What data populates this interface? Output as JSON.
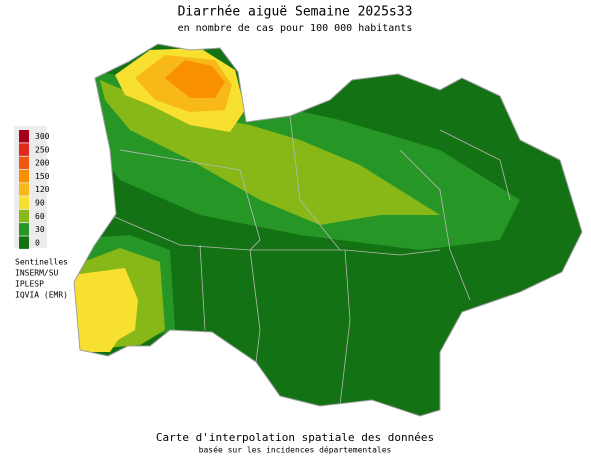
{
  "header": {
    "title": "Diarrhée aiguë Semaine 2025s33",
    "subtitle": "en nombre de cas pour 100 000 habitants"
  },
  "legend": {
    "items": [
      {
        "label": "300",
        "color": "#a8001c"
      },
      {
        "label": "250",
        "color": "#e02a1c"
      },
      {
        "label": "200",
        "color": "#f05a10"
      },
      {
        "label": "150",
        "color": "#f89000"
      },
      {
        "label": "120",
        "color": "#f8b818"
      },
      {
        "label": "90",
        "color": "#f8e030"
      },
      {
        "label": "60",
        "color": "#88b818"
      },
      {
        "label": "30",
        "color": "#269626"
      },
      {
        "label": "0",
        "color": "#137213"
      }
    ]
  },
  "sources": {
    "lines": [
      "Sentinelles",
      "INSERM/SU",
      "IPLESP",
      "IQVIA (EMR)"
    ]
  },
  "footer": {
    "line1": "Carte d'interpolation spatiale des données",
    "line2": "basée sur les incidences départementales"
  }
}
